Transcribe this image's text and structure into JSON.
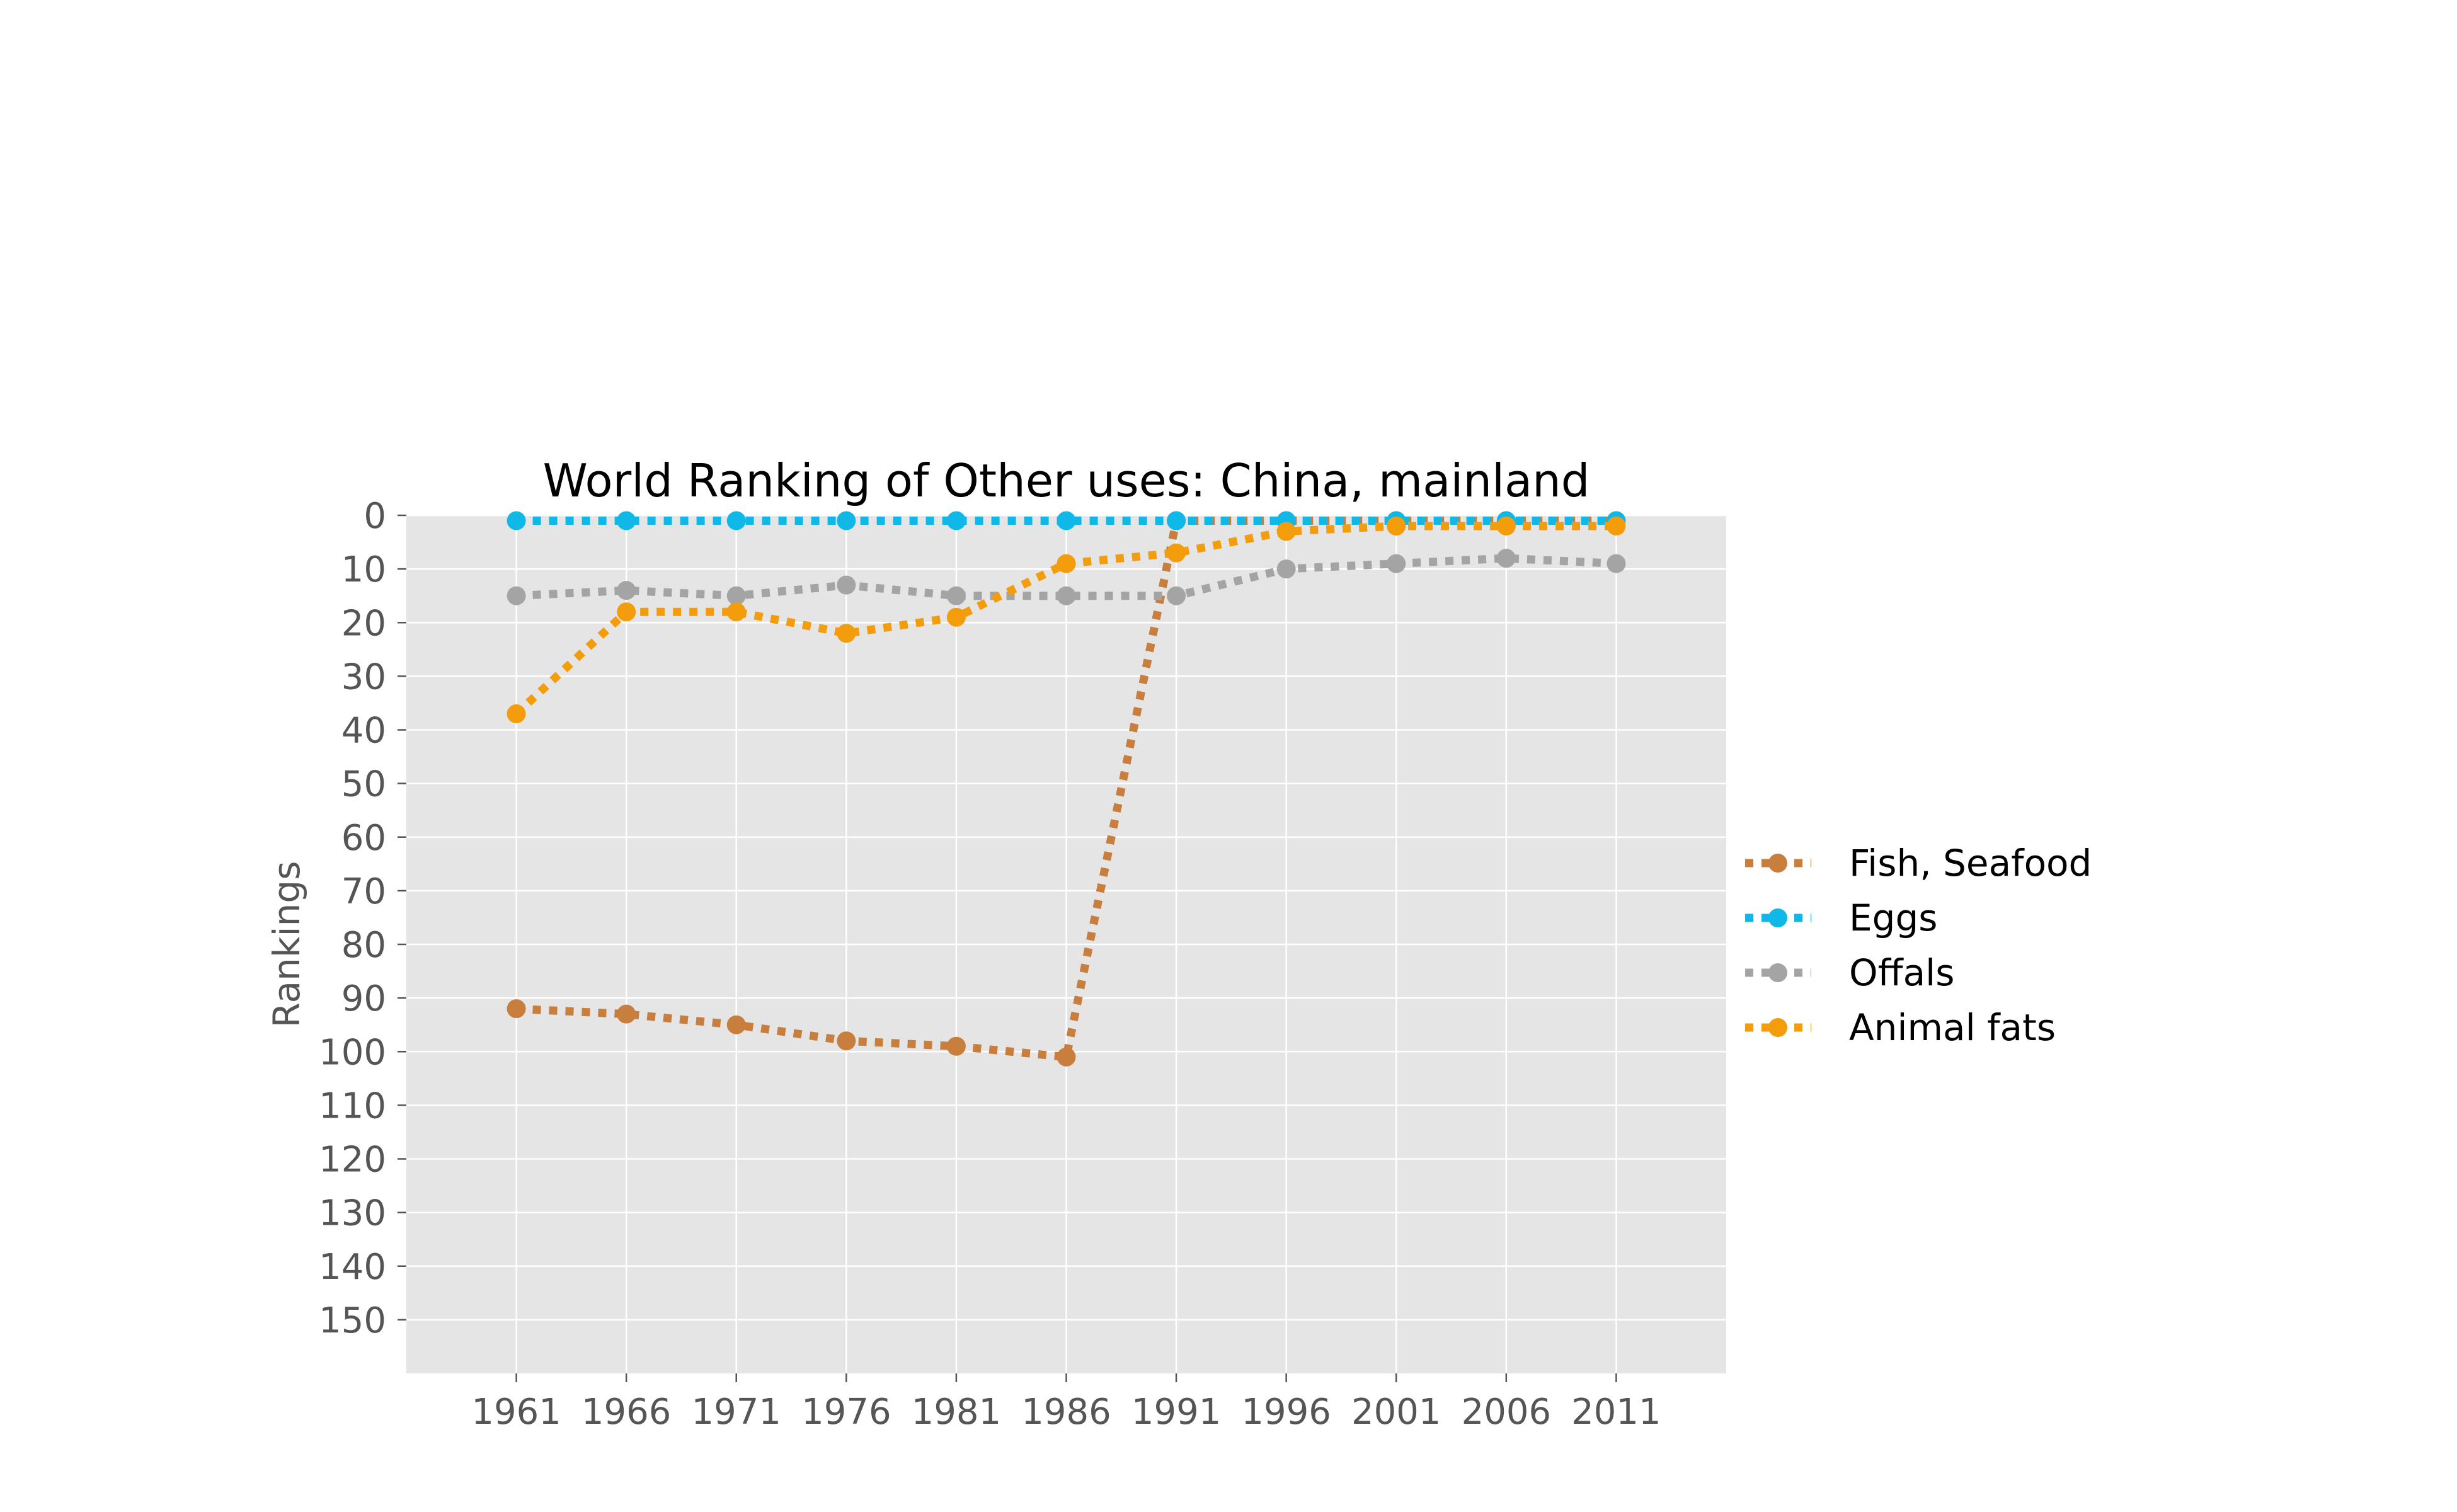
{
  "chart_data": {
    "type": "line",
    "title": "World Ranking of Other uses: China, mainland",
    "xlabel": "",
    "ylabel": "Rankings",
    "x": [
      1961,
      1966,
      1971,
      1976,
      1981,
      1986,
      1991,
      1996,
      2001,
      2006,
      2011
    ],
    "x_tick_labels": [
      "1961",
      "1966",
      "1971",
      "1976",
      "1981",
      "1986",
      "1991",
      "1996",
      "2001",
      "2006",
      "2011"
    ],
    "y_ticks": [
      0,
      10,
      20,
      30,
      40,
      50,
      60,
      70,
      80,
      90,
      100,
      110,
      120,
      130,
      140,
      150
    ],
    "y_tick_labels": [
      "0",
      "10",
      "20",
      "30",
      "40",
      "50",
      "60",
      "70",
      "80",
      "90",
      "100",
      "110",
      "120",
      "130",
      "140",
      "150"
    ],
    "ylim": [
      160,
      0
    ],
    "xlim": [
      1956,
      2016
    ],
    "y_inverted": true,
    "grid": true,
    "background": "#e5e5e5",
    "line_style": "dotted",
    "marker": "circle",
    "legend_position": "center-right-outside",
    "series": [
      {
        "name": "Fish, Seafood",
        "color": "#c87f3e",
        "values": [
          92,
          93,
          95,
          98,
          99,
          101,
          1,
          1,
          1,
          1,
          1
        ]
      },
      {
        "name": "Eggs",
        "color": "#10b8e8",
        "values": [
          1,
          1,
          1,
          1,
          1,
          1,
          1,
          1,
          1,
          1,
          1
        ]
      },
      {
        "name": "Offals",
        "color": "#a4a4a4",
        "values": [
          15,
          14,
          15,
          13,
          15,
          15,
          15,
          10,
          9,
          8,
          9
        ]
      },
      {
        "name": "Animal fats",
        "color": "#f49d0c",
        "values": [
          37,
          18,
          18,
          22,
          19,
          9,
          7,
          3,
          2,
          2,
          2
        ]
      }
    ]
  }
}
